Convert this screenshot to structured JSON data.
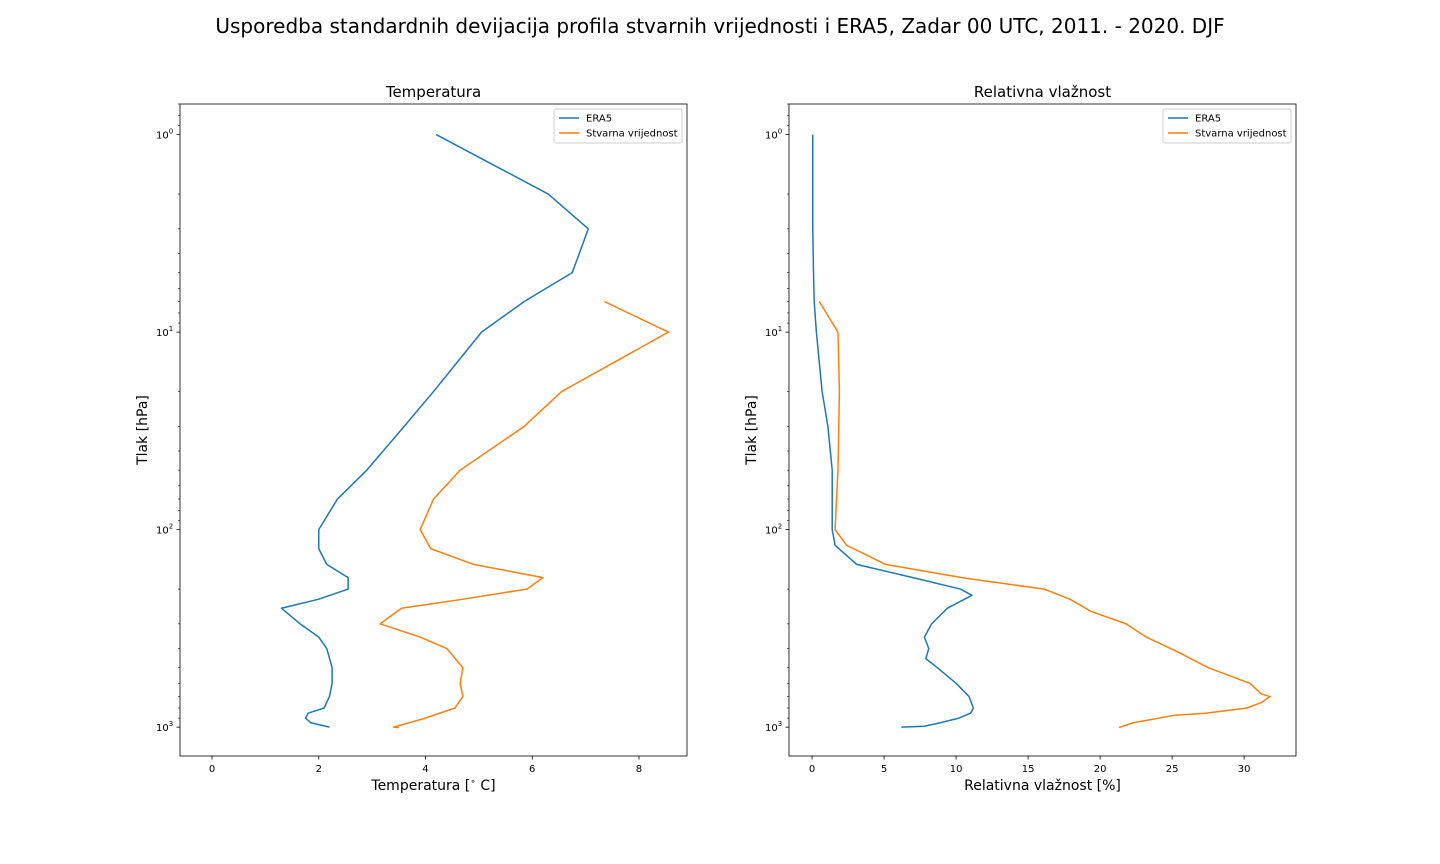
{
  "figure_title": "Usporedba standardnih devijacija profila stvarnih vrijednosti i ERA5, Zadar 00 UTC, 2011. - 2020. DJF",
  "colors": {
    "era5": "#1f77b4",
    "obs": "#ff7f0e"
  },
  "chart_data": [
    {
      "type": "line",
      "title": "Temperatura",
      "xlabel": "Temperatura [$^\\circ$ C]",
      "xlabel_parts": [
        "Temperatura [",
        "∘",
        " C]"
      ],
      "ylabel": "Tlak [hPa]",
      "xlim": [
        -0.6,
        8.9
      ],
      "xticks": [
        0,
        2,
        4,
        6,
        8
      ],
      "xtick_labels": [
        "0",
        "2",
        "4",
        "6",
        "8"
      ],
      "yscale": "log",
      "yinverted": true,
      "ylim": [
        0.7,
        1400
      ],
      "yticks": [
        1,
        10,
        100,
        1000
      ],
      "ytick_labels": [
        [
          "10",
          "0"
        ],
        [
          "10",
          "1"
        ],
        [
          "10",
          "2"
        ],
        [
          "10",
          "3"
        ]
      ],
      "legend": {
        "position": "upper right",
        "entries": [
          "ERA5",
          "Stvarna vrijednost"
        ]
      },
      "series": [
        {
          "name": "ERA5",
          "color": "#1f77b4",
          "points": [
            [
              4.2,
              1
            ],
            [
              6.3,
              2
            ],
            [
              7.05,
              3
            ],
            [
              6.75,
              5
            ],
            [
              5.85,
              7
            ],
            [
              5.05,
              10
            ],
            [
              4.15,
              20
            ],
            [
              3.6,
              30
            ],
            [
              2.9,
              50
            ],
            [
              2.35,
              70
            ],
            [
              2.0,
              100
            ],
            [
              2.0,
              125
            ],
            [
              2.15,
              150
            ],
            [
              2.55,
              175
            ],
            [
              2.55,
              200
            ],
            [
              2.0,
              225
            ],
            [
              1.3,
              250
            ],
            [
              1.65,
              300
            ],
            [
              2.0,
              350
            ],
            [
              2.15,
              400
            ],
            [
              2.25,
              500
            ],
            [
              2.25,
              600
            ],
            [
              2.2,
              700
            ],
            [
              2.1,
              800
            ],
            [
              1.8,
              850
            ],
            [
              1.75,
              900
            ],
            [
              1.85,
              950
            ],
            [
              2.2,
              1000
            ]
          ]
        },
        {
          "name": "Stvarna vrijednost",
          "color": "#ff7f0e",
          "points": [
            [
              7.35,
              7
            ],
            [
              8.55,
              10
            ],
            [
              6.55,
              20
            ],
            [
              5.85,
              30
            ],
            [
              4.65,
              50
            ],
            [
              4.15,
              70
            ],
            [
              3.9,
              100
            ],
            [
              4.1,
              125
            ],
            [
              4.9,
              150
            ],
            [
              6.2,
              175
            ],
            [
              5.9,
              200
            ],
            [
              4.7,
              225
            ],
            [
              3.55,
              250
            ],
            [
              3.15,
              300
            ],
            [
              3.9,
              350
            ],
            [
              4.4,
              400
            ],
            [
              4.7,
              500
            ],
            [
              4.65,
              600
            ],
            [
              4.7,
              700
            ],
            [
              4.55,
              800
            ],
            [
              4.0,
              900
            ],
            [
              3.4,
              1000
            ],
            [
              3.5,
              1005
            ]
          ]
        }
      ]
    },
    {
      "type": "line",
      "title": "Relativna vlažnost",
      "xlabel": "Relativna vlažnost [%]",
      "ylabel": "Tlak [hPa]",
      "xlim": [
        -1.6,
        33.6
      ],
      "xticks": [
        0,
        5,
        10,
        15,
        20,
        25,
        30
      ],
      "xtick_labels": [
        "0",
        "5",
        "10",
        "15",
        "20",
        "25",
        "30"
      ],
      "yscale": "log",
      "yinverted": true,
      "ylim": [
        0.7,
        1400
      ],
      "yticks": [
        1,
        10,
        100,
        1000
      ],
      "ytick_labels": [
        [
          "10",
          "0"
        ],
        [
          "10",
          "1"
        ],
        [
          "10",
          "2"
        ],
        [
          "10",
          "3"
        ]
      ],
      "legend": {
        "position": "upper right",
        "entries": [
          "ERA5",
          "Stvarna vrijednost"
        ]
      },
      "series": [
        {
          "name": "ERA5",
          "color": "#1f77b4",
          "points": [
            [
              0.05,
              1
            ],
            [
              0.05,
              2
            ],
            [
              0.05,
              3
            ],
            [
              0.1,
              5
            ],
            [
              0.15,
              7
            ],
            [
              0.3,
              10
            ],
            [
              0.7,
              20
            ],
            [
              1.1,
              30
            ],
            [
              1.4,
              50
            ],
            [
              1.4,
              70
            ],
            [
              1.4,
              100
            ],
            [
              1.6,
              120
            ],
            [
              3.1,
              150
            ],
            [
              7.0,
              175
            ],
            [
              10.3,
              200
            ],
            [
              11.1,
              215
            ],
            [
              9.4,
              250
            ],
            [
              8.3,
              300
            ],
            [
              7.8,
              350
            ],
            [
              8.1,
              400
            ],
            [
              7.9,
              450
            ],
            [
              8.7,
              500
            ],
            [
              10.0,
              600
            ],
            [
              10.9,
              700
            ],
            [
              11.2,
              800
            ],
            [
              11.0,
              850
            ],
            [
              10.2,
              900
            ],
            [
              8.9,
              950
            ],
            [
              7.8,
              990
            ],
            [
              6.2,
              1000
            ]
          ]
        },
        {
          "name": "Stvarna vrijednost",
          "color": "#ff7f0e",
          "points": [
            [
              0.5,
              7
            ],
            [
              1.8,
              10
            ],
            [
              1.9,
              20
            ],
            [
              1.8,
              50
            ],
            [
              1.6,
              100
            ],
            [
              2.4,
              120
            ],
            [
              5.1,
              150
            ],
            [
              10.4,
              175
            ],
            [
              16.1,
              200
            ],
            [
              17.9,
              225
            ],
            [
              19.4,
              260
            ],
            [
              21.8,
              300
            ],
            [
              23.2,
              350
            ],
            [
              25.5,
              420
            ],
            [
              27.5,
              500
            ],
            [
              30.4,
              600
            ],
            [
              31.2,
              680
            ],
            [
              31.8,
              700
            ],
            [
              31.2,
              750
            ],
            [
              30.2,
              800
            ],
            [
              27.3,
              850
            ],
            [
              25.2,
              870
            ],
            [
              22.3,
              950
            ],
            [
              21.5,
              995
            ],
            [
              21.3,
              1005
            ]
          ]
        }
      ]
    }
  ]
}
